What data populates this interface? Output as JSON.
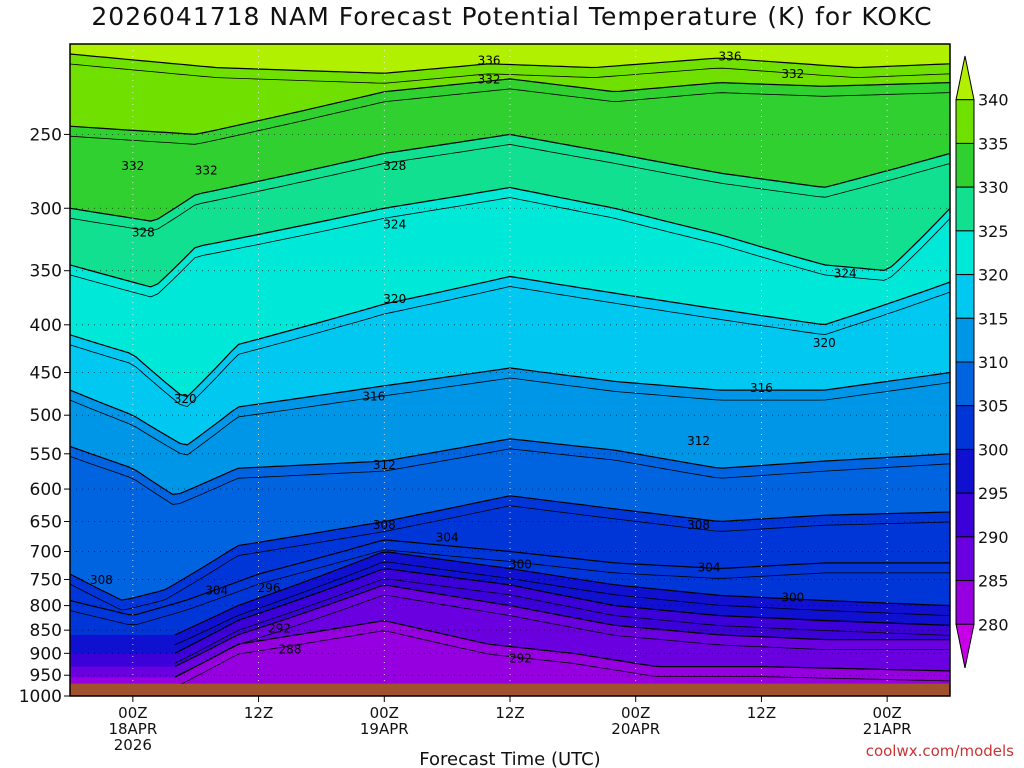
{
  "chart_data": {
    "type": "heatmap",
    "title": "2026041718 NAM Forecast Potential Temperature (K) for KOKC",
    "xlabel": "Forecast Time (UTC)",
    "ylabel": "",
    "y_scale": "log-pressure",
    "y_ticks": [
      250,
      300,
      350,
      400,
      450,
      500,
      550,
      600,
      650,
      700,
      750,
      800,
      850,
      900,
      950,
      1000
    ],
    "y_range": [
      200,
      1000
    ],
    "x_ticks": [
      {
        "hour": 6,
        "label1": "00Z",
        "label2": "18APR",
        "label3": "2026"
      },
      {
        "hour": 18,
        "label1": "12Z",
        "label2": "",
        "label3": ""
      },
      {
        "hour": 30,
        "label1": "00Z",
        "label2": "19APR",
        "label3": ""
      },
      {
        "hour": 42,
        "label1": "12Z",
        "label2": "",
        "label3": ""
      },
      {
        "hour": 54,
        "label1": "00Z",
        "label2": "20APR",
        "label3": ""
      },
      {
        "hour": 66,
        "label1": "12Z",
        "label2": "",
        "label3": ""
      },
      {
        "hour": 78,
        "label1": "00Z",
        "label2": "21APR",
        "label3": ""
      }
    ],
    "x_range_hours": [
      0,
      84
    ],
    "colorbar": {
      "levels": [
        280,
        285,
        290,
        295,
        300,
        305,
        310,
        315,
        320,
        325,
        330,
        335,
        340
      ],
      "colors": [
        "#c800e8",
        "#9600e0",
        "#6a00e0",
        "#3c00d8",
        "#1010d0",
        "#0036d8",
        "#0064e0",
        "#0096e8",
        "#00c8f0",
        "#00e8d8",
        "#10e090",
        "#30d030",
        "#70e000",
        "#b0f000"
      ]
    },
    "series": [
      {
        "name": "336",
        "values": [
          [
            0,
            205
          ],
          [
            14,
            212
          ],
          [
            30,
            215
          ],
          [
            40,
            210
          ],
          [
            50,
            212
          ],
          [
            62,
            207
          ],
          [
            75,
            212
          ],
          [
            84,
            210
          ]
        ]
      },
      {
        "name": "332",
        "values": [
          [
            0,
            245
          ],
          [
            12,
            250
          ],
          [
            30,
            225
          ],
          [
            42,
            218
          ],
          [
            52,
            225
          ],
          [
            62,
            220
          ],
          [
            72,
            222
          ],
          [
            84,
            220
          ]
        ]
      },
      {
        "name": "328",
        "values": [
          [
            0,
            300
          ],
          [
            8,
            310
          ],
          [
            12,
            290
          ],
          [
            30,
            262
          ],
          [
            42,
            250
          ],
          [
            52,
            262
          ],
          [
            62,
            275
          ],
          [
            72,
            285
          ],
          [
            84,
            262
          ]
        ]
      },
      {
        "name": "324",
        "values": [
          [
            0,
            345
          ],
          [
            8,
            365
          ],
          [
            12,
            330
          ],
          [
            30,
            300
          ],
          [
            42,
            285
          ],
          [
            52,
            300
          ],
          [
            62,
            320
          ],
          [
            72,
            345
          ],
          [
            78,
            350
          ],
          [
            84,
            300
          ]
        ]
      },
      {
        "name": "320",
        "values": [
          [
            0,
            410
          ],
          [
            6,
            430
          ],
          [
            11,
            480
          ],
          [
            16,
            420
          ],
          [
            30,
            380
          ],
          [
            42,
            355
          ],
          [
            52,
            370
          ],
          [
            62,
            385
          ],
          [
            72,
            400
          ],
          [
            84,
            360
          ]
        ]
      },
      {
        "name": "316",
        "values": [
          [
            0,
            470
          ],
          [
            6,
            500
          ],
          [
            11,
            540
          ],
          [
            16,
            490
          ],
          [
            30,
            465
          ],
          [
            42,
            445
          ],
          [
            52,
            460
          ],
          [
            62,
            470
          ],
          [
            72,
            470
          ],
          [
            84,
            450
          ]
        ]
      },
      {
        "name": "312",
        "values": [
          [
            0,
            540
          ],
          [
            6,
            570
          ],
          [
            10,
            610
          ],
          [
            16,
            570
          ],
          [
            30,
            560
          ],
          [
            42,
            530
          ],
          [
            52,
            545
          ],
          [
            62,
            570
          ],
          [
            72,
            560
          ],
          [
            84,
            550
          ]
        ]
      },
      {
        "name": "308",
        "values": [
          [
            0,
            740
          ],
          [
            5,
            790
          ],
          [
            9,
            770
          ],
          [
            16,
            690
          ],
          [
            30,
            650
          ],
          [
            42,
            610
          ],
          [
            52,
            630
          ],
          [
            62,
            650
          ],
          [
            72,
            640
          ],
          [
            84,
            635
          ]
        ]
      },
      {
        "name": "304",
        "values": [
          [
            0,
            790
          ],
          [
            6,
            820
          ],
          [
            11,
            790
          ],
          [
            18,
            740
          ],
          [
            30,
            680
          ],
          [
            42,
            700
          ],
          [
            52,
            720
          ],
          [
            62,
            730
          ],
          [
            72,
            720
          ],
          [
            84,
            720
          ]
        ]
      },
      {
        "name": "300",
        "values": [
          [
            10,
            860
          ],
          [
            16,
            800
          ],
          [
            30,
            700
          ],
          [
            42,
            730
          ],
          [
            52,
            760
          ],
          [
            62,
            780
          ],
          [
            72,
            790
          ],
          [
            84,
            800
          ]
        ]
      },
      {
        "name": "296",
        "values": [
          [
            10,
            900
          ],
          [
            16,
            830
          ],
          [
            30,
            730
          ],
          [
            42,
            760
          ],
          [
            52,
            800
          ],
          [
            62,
            820
          ],
          [
            72,
            830
          ],
          [
            84,
            840
          ]
        ]
      },
      {
        "name": "292",
        "values": [
          [
            10,
            930
          ],
          [
            16,
            860
          ],
          [
            30,
            760
          ],
          [
            42,
            800
          ],
          [
            52,
            840
          ],
          [
            62,
            860
          ],
          [
            72,
            870
          ],
          [
            84,
            870
          ]
        ]
      },
      {
        "name": "288",
        "values": [
          [
            10,
            955
          ],
          [
            16,
            880
          ],
          [
            30,
            830
          ],
          [
            40,
            880
          ],
          [
            48,
            900
          ],
          [
            56,
            930
          ],
          [
            66,
            930
          ],
          [
            84,
            940
          ]
        ]
      }
    ],
    "contour_labels": [
      {
        "text": "336",
        "hour": 40,
        "p": 208
      },
      {
        "text": "336",
        "hour": 63,
        "p": 206
      },
      {
        "text": "332",
        "hour": 40,
        "p": 218
      },
      {
        "text": "332",
        "hour": 69,
        "p": 215
      },
      {
        "text": "332",
        "hour": 6,
        "p": 270
      },
      {
        "text": "332",
        "hour": 13,
        "p": 273
      },
      {
        "text": "328",
        "hour": 31,
        "p": 270
      },
      {
        "text": "328",
        "hour": 7,
        "p": 318
      },
      {
        "text": "324",
        "hour": 31,
        "p": 312
      },
      {
        "text": "324",
        "hour": 74,
        "p": 352
      },
      {
        "text": "320",
        "hour": 31,
        "p": 375
      },
      {
        "text": "320",
        "hour": 72,
        "p": 418
      },
      {
        "text": "320",
        "hour": 11,
        "p": 480
      },
      {
        "text": "316",
        "hour": 29,
        "p": 477
      },
      {
        "text": "316",
        "hour": 66,
        "p": 467
      },
      {
        "text": "312",
        "hour": 30,
        "p": 565
      },
      {
        "text": "312",
        "hour": 60,
        "p": 532
      },
      {
        "text": "308",
        "hour": 30,
        "p": 655
      },
      {
        "text": "308",
        "hour": 60,
        "p": 655
      },
      {
        "text": "308",
        "hour": 3,
        "p": 750
      },
      {
        "text": "304",
        "hour": 36,
        "p": 675
      },
      {
        "text": "304",
        "hour": 61,
        "p": 727
      },
      {
        "text": "304",
        "hour": 14,
        "p": 770
      },
      {
        "text": "300",
        "hour": 43,
        "p": 722
      },
      {
        "text": "300",
        "hour": 69,
        "p": 783
      },
      {
        "text": "296",
        "hour": 19,
        "p": 765
      },
      {
        "text": "292",
        "hour": 20,
        "p": 845
      },
      {
        "text": "292",
        "hour": 43,
        "p": 910
      },
      {
        "text": "288",
        "hour": 21,
        "p": 890
      }
    ],
    "surface_pressure": 970,
    "watermark": "coolwx.com/models"
  }
}
